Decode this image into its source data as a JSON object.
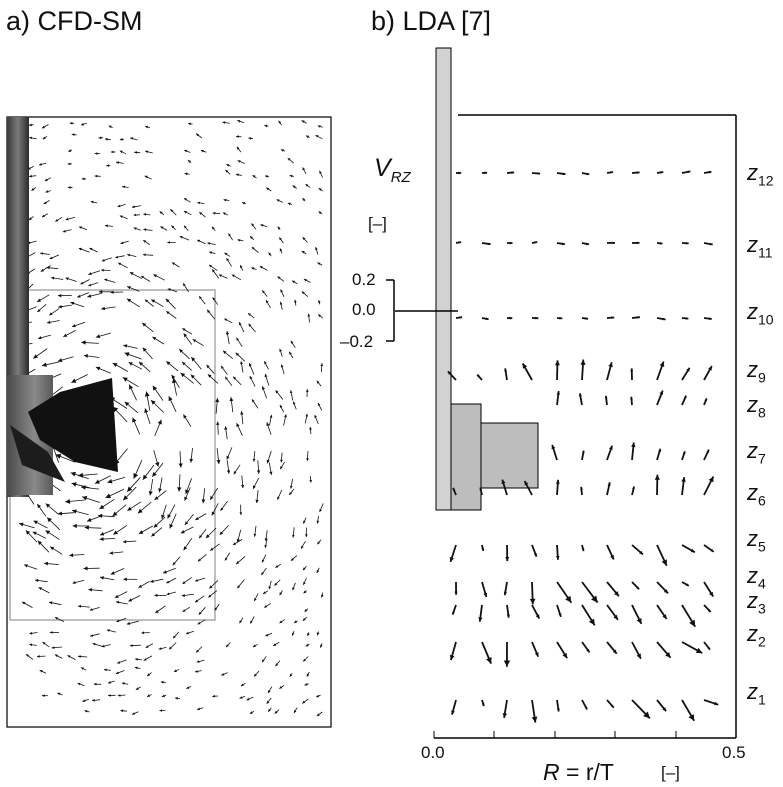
{
  "panel_a": {
    "title": "a) CFD-SM"
  },
  "panel_b": {
    "title": "b) LDA [7]",
    "legend": {
      "symbol": "V",
      "subscript": "RZ",
      "unit": "[–]",
      "ticks": [
        "0.2",
        "0.0",
        "–0.2"
      ]
    },
    "x_axis": {
      "label_R": "R",
      "label_rest": " = r/T",
      "unit": "[–]",
      "tick_min": "0.0",
      "tick_max": "0.5"
    },
    "levels": [
      {
        "name": "z",
        "sub": "12"
      },
      {
        "name": "z",
        "sub": "11"
      },
      {
        "name": "z",
        "sub": "10"
      },
      {
        "name": "z",
        "sub": "9"
      },
      {
        "name": "z",
        "sub": "8"
      },
      {
        "name": "z",
        "sub": "7"
      },
      {
        "name": "z",
        "sub": "6"
      },
      {
        "name": "z",
        "sub": "5"
      },
      {
        "name": "z",
        "sub": "4"
      },
      {
        "name": "z",
        "sub": "3"
      },
      {
        "name": "z",
        "sub": "2"
      },
      {
        "name": "z",
        "sub": "1"
      }
    ]
  },
  "colors": {
    "ink": "#111111",
    "frame": "#000000",
    "impeller": "#9a9a9a",
    "cfd_box": "#aaaaaa"
  }
}
